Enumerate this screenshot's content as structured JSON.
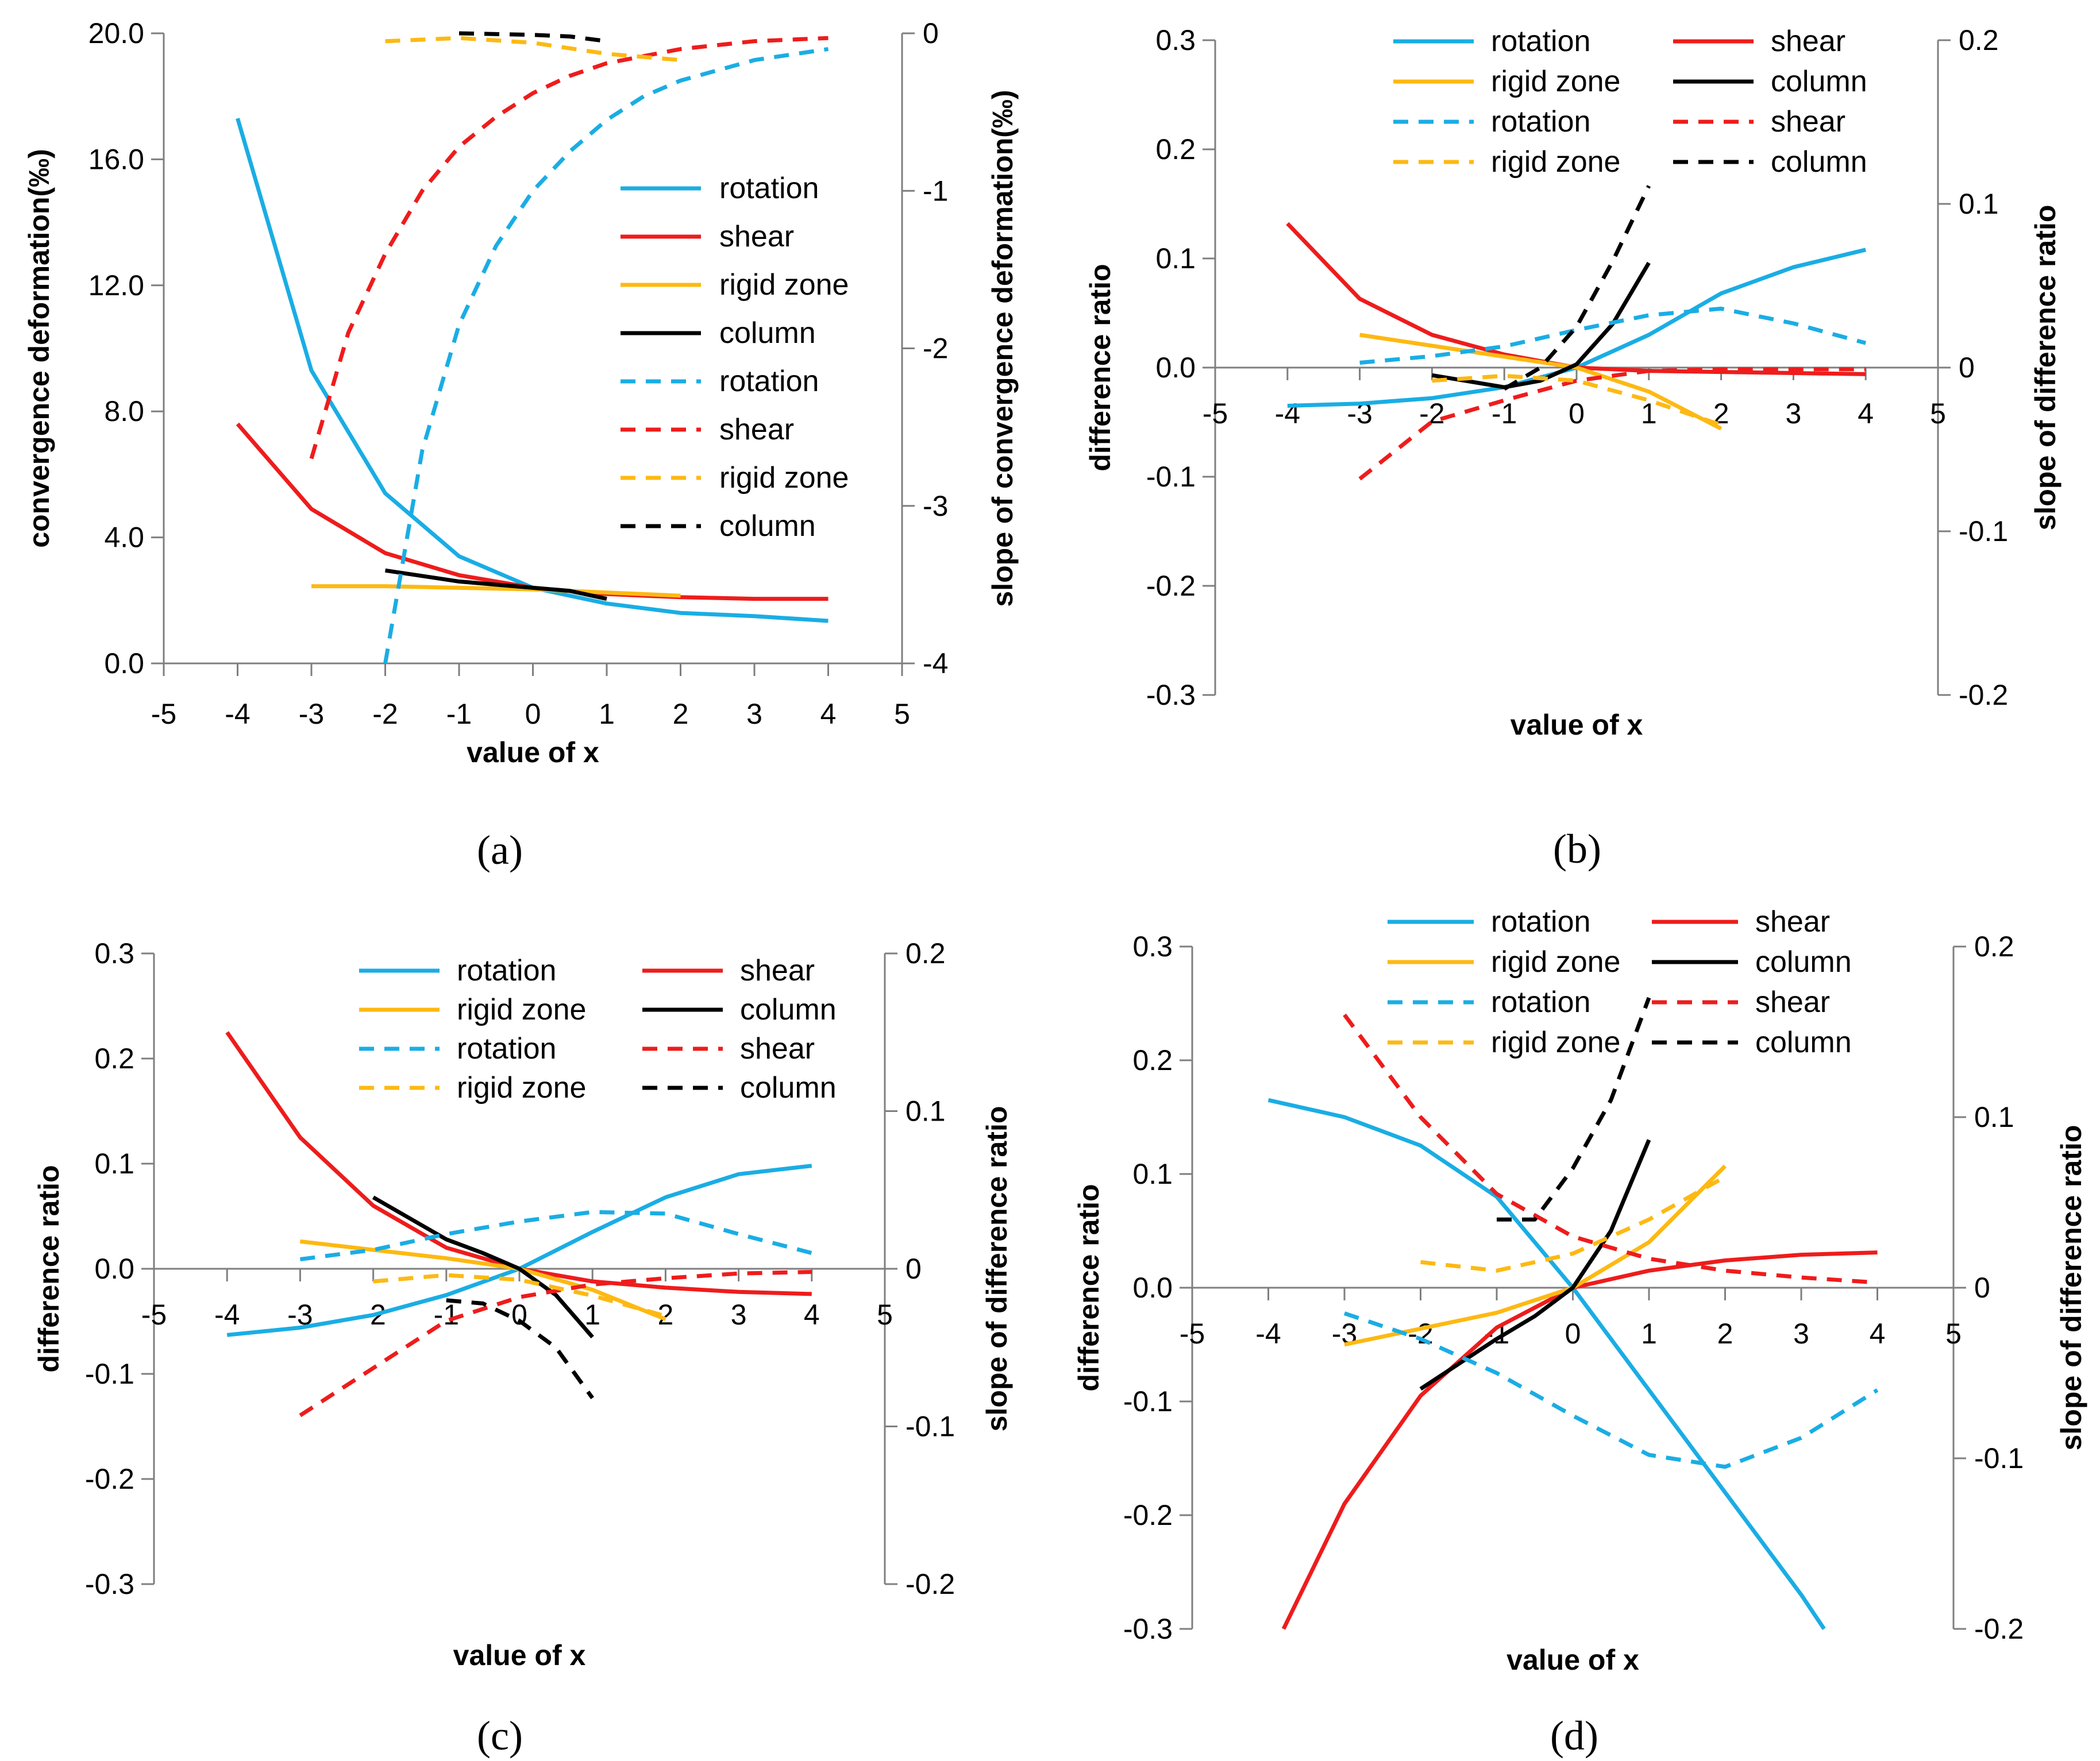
{
  "chart_data": [
    {
      "id": "a",
      "type": "line",
      "caption": "(a)",
      "xlabel": "value of x",
      "ylabel": "convergence deformation(‰)",
      "y2label": "slope of convergence deformation(‰)",
      "xlim": [
        -5,
        5
      ],
      "ylim": [
        0,
        20
      ],
      "y2lim": [
        -4,
        0
      ],
      "xticks": [
        "-5",
        "-4",
        "-3",
        "-2",
        "-1",
        "0",
        "1",
        "2",
        "3",
        "4",
        "5"
      ],
      "yticks": [
        "0.0",
        "4.0",
        "8.0",
        "12.0",
        "16.0",
        "20.0"
      ],
      "y2ticks": [
        "-4",
        "-3",
        "-2",
        "-1",
        "0"
      ],
      "series": [
        {
          "name": "rotation",
          "color": "#1AADE4",
          "dash": false,
          "axis": "left",
          "x": [
            -4,
            -3,
            -2,
            -1,
            0,
            1,
            2,
            3,
            4
          ],
          "y": [
            17.3,
            9.3,
            5.4,
            3.4,
            2.4,
            1.9,
            1.6,
            1.5,
            1.35
          ]
        },
        {
          "name": "shear",
          "color": "#EE1C1C",
          "dash": false,
          "axis": "left",
          "x": [
            -4,
            -3,
            -2,
            -1,
            0,
            1,
            2,
            3,
            4
          ],
          "y": [
            7.6,
            4.9,
            3.5,
            2.8,
            2.4,
            2.2,
            2.1,
            2.05,
            2.05
          ]
        },
        {
          "name": "rigid zone",
          "color": "#FDB913",
          "dash": false,
          "axis": "left",
          "x": [
            -3,
            -2,
            -1,
            0,
            1,
            2
          ],
          "y": [
            2.45,
            2.45,
            2.4,
            2.35,
            2.25,
            2.15
          ]
        },
        {
          "name": "column",
          "color": "#000000",
          "dash": false,
          "axis": "left",
          "x": [
            -2,
            -1,
            0,
            0.5,
            1
          ],
          "y": [
            2.95,
            2.6,
            2.4,
            2.3,
            2.05
          ]
        },
        {
          "name": "rotation",
          "color": "#1AADE4",
          "dash": true,
          "axis": "right",
          "x": [
            -2,
            -1.5,
            -1,
            -0.5,
            0,
            0.5,
            1,
            1.5,
            2,
            3,
            4
          ],
          "y": [
            -4.0,
            -2.65,
            -1.85,
            -1.35,
            -1.0,
            -0.75,
            -0.55,
            -0.4,
            -0.3,
            -0.17,
            -0.1
          ]
        },
        {
          "name": "shear",
          "color": "#EE1C1C",
          "dash": true,
          "axis": "right",
          "x": [
            -3,
            -2.5,
            -2,
            -1.5,
            -1,
            -0.5,
            0,
            0.5,
            1,
            2,
            3,
            4
          ],
          "y": [
            -2.7,
            -1.9,
            -1.4,
            -1.0,
            -0.72,
            -0.53,
            -0.38,
            -0.27,
            -0.19,
            -0.1,
            -0.05,
            -0.03
          ]
        },
        {
          "name": "rigid zone",
          "color": "#FDB913",
          "dash": true,
          "axis": "right",
          "x": [
            -2,
            -1,
            0,
            1,
            2
          ],
          "y": [
            -0.05,
            -0.03,
            -0.06,
            -0.13,
            -0.17
          ]
        },
        {
          "name": "column",
          "color": "#000000",
          "dash": true,
          "axis": "right",
          "x": [
            -1,
            0,
            0.5,
            1
          ],
          "y": [
            0.0,
            -0.01,
            -0.02,
            -0.05
          ]
        }
      ]
    },
    {
      "id": "b",
      "type": "line",
      "caption": "(b)",
      "xlabel": "value of x",
      "ylabel": "difference ratio",
      "y2label": "slope of difference ratio",
      "xlim": [
        -5,
        5
      ],
      "ylim": [
        -0.3,
        0.3
      ],
      "y2lim": [
        -0.2,
        0.2
      ],
      "xticks": [
        "-5",
        "-4",
        "-3",
        "-2",
        "-1",
        "0",
        "1",
        "2",
        "3",
        "4",
        "5"
      ],
      "yticks": [
        "-0.3",
        "-0.2",
        "-0.1",
        "0.0",
        "0.1",
        "0.2",
        "0.3"
      ],
      "y2ticks": [
        "-0.2",
        "-0.1",
        "0",
        "0.1",
        "0.2"
      ],
      "series": [
        {
          "name": "rotation",
          "color": "#1AADE4",
          "dash": false,
          "axis": "left",
          "x": [
            -4,
            -3,
            -2,
            -1,
            0,
            1,
            2,
            3,
            4
          ],
          "y": [
            -0.035,
            -0.033,
            -0.028,
            -0.018,
            0.0,
            0.03,
            0.068,
            0.092,
            0.108
          ]
        },
        {
          "name": "shear",
          "color": "#EE1C1C",
          "dash": false,
          "axis": "left",
          "x": [
            -4,
            -3,
            -2,
            -1,
            0,
            1,
            2,
            3,
            4
          ],
          "y": [
            0.132,
            0.063,
            0.03,
            0.012,
            0.0,
            -0.003,
            -0.004,
            -0.005,
            -0.006
          ]
        },
        {
          "name": "rigid zone",
          "color": "#FDB913",
          "dash": false,
          "axis": "left",
          "x": [
            -3,
            -2,
            -1,
            0,
            1,
            2
          ],
          "y": [
            0.03,
            0.02,
            0.01,
            0.0,
            -0.022,
            -0.056
          ]
        },
        {
          "name": "column",
          "color": "#000000",
          "dash": false,
          "axis": "left",
          "x": [
            -2,
            -1,
            -0.5,
            0,
            0.5,
            1
          ],
          "y": [
            -0.007,
            -0.018,
            -0.012,
            0.003,
            0.04,
            0.096
          ]
        },
        {
          "name": "rotation",
          "color": "#1AADE4",
          "dash": true,
          "axis": "right",
          "x": [
            -3,
            -2,
            -1,
            0,
            1,
            2,
            3,
            4
          ],
          "y": [
            0.003,
            0.007,
            0.013,
            0.023,
            0.032,
            0.036,
            0.027,
            0.015
          ]
        },
        {
          "name": "shear",
          "color": "#EE1C1C",
          "dash": true,
          "axis": "right",
          "x": [
            -3,
            -2,
            -1,
            0,
            1,
            2,
            3,
            4
          ],
          "y": [
            -0.068,
            -0.033,
            -0.02,
            -0.008,
            -0.002,
            -0.001,
            -0.001,
            -0.001
          ]
        },
        {
          "name": "rigid zone",
          "color": "#FDB913",
          "dash": true,
          "axis": "right",
          "x": [
            -2,
            -1,
            0,
            1,
            2
          ],
          "y": [
            -0.008,
            -0.005,
            -0.008,
            -0.02,
            -0.035
          ]
        },
        {
          "name": "column",
          "color": "#000000",
          "dash": true,
          "axis": "right",
          "x": [
            -1,
            -0.5,
            0,
            0.5,
            1
          ],
          "y": [
            -0.013,
            0.0,
            0.025,
            0.065,
            0.111
          ]
        }
      ]
    },
    {
      "id": "c",
      "type": "line",
      "caption": "(c)",
      "xlabel": "value of x",
      "ylabel": "difference ratio",
      "y2label": "slope of difference ratio",
      "xlim": [
        -5,
        5
      ],
      "ylim": [
        -0.3,
        0.3
      ],
      "y2lim": [
        -0.2,
        0.2
      ],
      "xticks": [
        "-5",
        "-4",
        "-3",
        "-2",
        "-1",
        "0",
        "1",
        "2",
        "3",
        "4",
        "5"
      ],
      "yticks": [
        "-0.3",
        "-0.2",
        "-0.1",
        "0.0",
        "0.1",
        "0.2",
        "0.3"
      ],
      "y2ticks": [
        "-0.2",
        "-0.1",
        "0",
        "0.1",
        "0.2"
      ],
      "series": [
        {
          "name": "rotation",
          "color": "#1AADE4",
          "dash": false,
          "axis": "left",
          "x": [
            -4,
            -3,
            -2,
            -1,
            0,
            1,
            2,
            3,
            4
          ],
          "y": [
            -0.063,
            -0.056,
            -0.044,
            -0.025,
            0.0,
            0.035,
            0.068,
            0.09,
            0.098
          ]
        },
        {
          "name": "shear",
          "color": "#EE1C1C",
          "dash": false,
          "axis": "left",
          "x": [
            -4,
            -3,
            -2,
            -1,
            0,
            1,
            2,
            3,
            4
          ],
          "y": [
            0.225,
            0.125,
            0.06,
            0.02,
            0.0,
            -0.012,
            -0.018,
            -0.022,
            -0.024
          ]
        },
        {
          "name": "rigid zone",
          "color": "#FDB913",
          "dash": false,
          "axis": "left",
          "x": [
            -3,
            -2,
            -1,
            0,
            1,
            2
          ],
          "y": [
            0.026,
            0.018,
            0.01,
            0.0,
            -0.02,
            -0.048
          ]
        },
        {
          "name": "column",
          "color": "#000000",
          "dash": false,
          "axis": "left",
          "x": [
            -2,
            -1,
            -0.5,
            0,
            0.5,
            1
          ],
          "y": [
            0.068,
            0.028,
            0.015,
            0.0,
            -0.025,
            -0.065
          ]
        },
        {
          "name": "rotation",
          "color": "#1AADE4",
          "dash": true,
          "axis": "right",
          "x": [
            -3,
            -2,
            -1,
            0,
            1,
            2,
            3,
            4
          ],
          "y": [
            0.006,
            0.012,
            0.022,
            0.03,
            0.036,
            0.035,
            0.022,
            0.01
          ]
        },
        {
          "name": "shear",
          "color": "#EE1C1C",
          "dash": true,
          "axis": "right",
          "x": [
            -3,
            -2,
            -1,
            0,
            1,
            2,
            3,
            4
          ],
          "y": [
            -0.093,
            -0.063,
            -0.033,
            -0.018,
            -0.01,
            -0.006,
            -0.003,
            -0.002
          ]
        },
        {
          "name": "rigid zone",
          "color": "#FDB913",
          "dash": true,
          "axis": "right",
          "x": [
            -2,
            -1,
            0,
            1,
            2
          ],
          "y": [
            -0.008,
            -0.004,
            -0.007,
            -0.017,
            -0.03
          ]
        },
        {
          "name": "column",
          "color": "#000000",
          "dash": true,
          "axis": "right",
          "x": [
            -1,
            -0.5,
            0,
            0.5,
            1
          ],
          "y": [
            -0.02,
            -0.022,
            -0.033,
            -0.05,
            -0.082
          ]
        }
      ]
    },
    {
      "id": "d",
      "type": "line",
      "caption": "(d)",
      "xlabel": "value of x",
      "ylabel": "difference ratio",
      "y2label": "slope of difference ratio",
      "xlim": [
        -5,
        5
      ],
      "ylim": [
        -0.3,
        0.3
      ],
      "y2lim": [
        -0.2,
        0.2
      ],
      "xticks": [
        "-5",
        "-4",
        "-3",
        "-2",
        "-1",
        "0",
        "1",
        "2",
        "3",
        "4",
        "5"
      ],
      "yticks": [
        "-0.3",
        "-0.2",
        "-0.1",
        "0.0",
        "0.1",
        "0.2",
        "0.3"
      ],
      "y2ticks": [
        "-0.2",
        "-0.1",
        "0",
        "0.1",
        "0.2"
      ],
      "series": [
        {
          "name": "rotation",
          "color": "#1AADE4",
          "dash": false,
          "axis": "left",
          "x": [
            -4,
            -3,
            -2,
            -1,
            0,
            1,
            2,
            3,
            3.3
          ],
          "y": [
            0.165,
            0.15,
            0.125,
            0.08,
            0.0,
            -0.09,
            -0.18,
            -0.27,
            -0.3
          ]
        },
        {
          "name": "shear",
          "color": "#EE1C1C",
          "dash": false,
          "axis": "left",
          "x": [
            -3.8,
            -3,
            -2,
            -1,
            0,
            1,
            2,
            3,
            4
          ],
          "y": [
            -0.3,
            -0.19,
            -0.095,
            -0.035,
            0.0,
            0.015,
            0.024,
            0.029,
            0.031
          ]
        },
        {
          "name": "rigid zone",
          "color": "#FDB913",
          "dash": false,
          "axis": "left",
          "x": [
            -3,
            -2,
            -1,
            0,
            1,
            2
          ],
          "y": [
            -0.05,
            -0.036,
            -0.022,
            0.0,
            0.04,
            0.107
          ]
        },
        {
          "name": "column",
          "color": "#000000",
          "dash": false,
          "axis": "left",
          "x": [
            -2,
            -1,
            -0.5,
            0,
            0.5,
            1
          ],
          "y": [
            -0.089,
            -0.045,
            -0.025,
            0.0,
            0.05,
            0.13
          ]
        },
        {
          "name": "rotation",
          "color": "#1AADE4",
          "dash": true,
          "axis": "right",
          "x": [
            -3,
            -2,
            -1,
            0,
            1,
            2,
            3,
            4
          ],
          "y": [
            -0.015,
            -0.03,
            -0.05,
            -0.075,
            -0.098,
            -0.105,
            -0.088,
            -0.06
          ]
        },
        {
          "name": "shear",
          "color": "#EE1C1C",
          "dash": true,
          "axis": "right",
          "x": [
            -3,
            -2,
            -1,
            0,
            1,
            2,
            3,
            4
          ],
          "y": [
            0.16,
            0.1,
            0.055,
            0.03,
            0.017,
            0.01,
            0.006,
            0.003
          ]
        },
        {
          "name": "rigid zone",
          "color": "#FDB913",
          "dash": true,
          "axis": "right",
          "x": [
            -2,
            -1,
            0,
            1,
            2
          ],
          "y": [
            0.015,
            0.01,
            0.02,
            0.04,
            0.065
          ]
        },
        {
          "name": "column",
          "color": "#000000",
          "dash": true,
          "axis": "right",
          "x": [
            -1,
            -0.5,
            0,
            0.5,
            1
          ],
          "y": [
            0.04,
            0.04,
            0.07,
            0.11,
            0.17
          ]
        }
      ]
    }
  ]
}
